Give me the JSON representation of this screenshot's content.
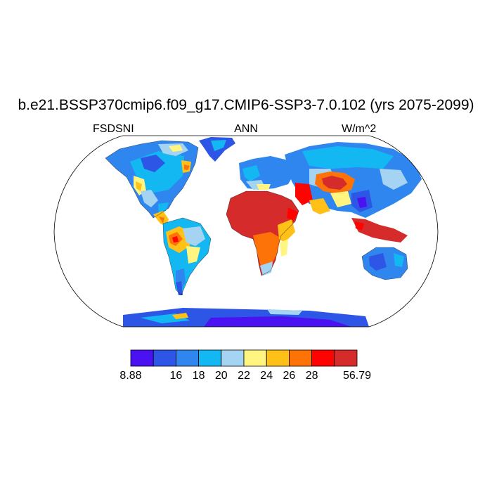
{
  "title": "b.e21.BSSP370cmip6.f09_g17.CMIP6-SSP3-7.0.102 (yrs 2075-2099)",
  "labels": {
    "variable": "FSDSNI",
    "season": "ANN",
    "units": "W/m^2"
  },
  "colorbar": {
    "colors": [
      "#4a12f0",
      "#2d55e6",
      "#2f86ef",
      "#13b8f3",
      "#a5d4f2",
      "#fff580",
      "#ffc018",
      "#fe7308",
      "#fe0300",
      "#d52b2b"
    ],
    "tick_labels": [
      "8.88",
      "16",
      "18",
      "20",
      "22",
      "24",
      "26",
      "28",
      "56.79"
    ]
  },
  "map": {
    "projection": "robinson",
    "ocean_color": "#ffffff",
    "outline_color": "#000000"
  }
}
